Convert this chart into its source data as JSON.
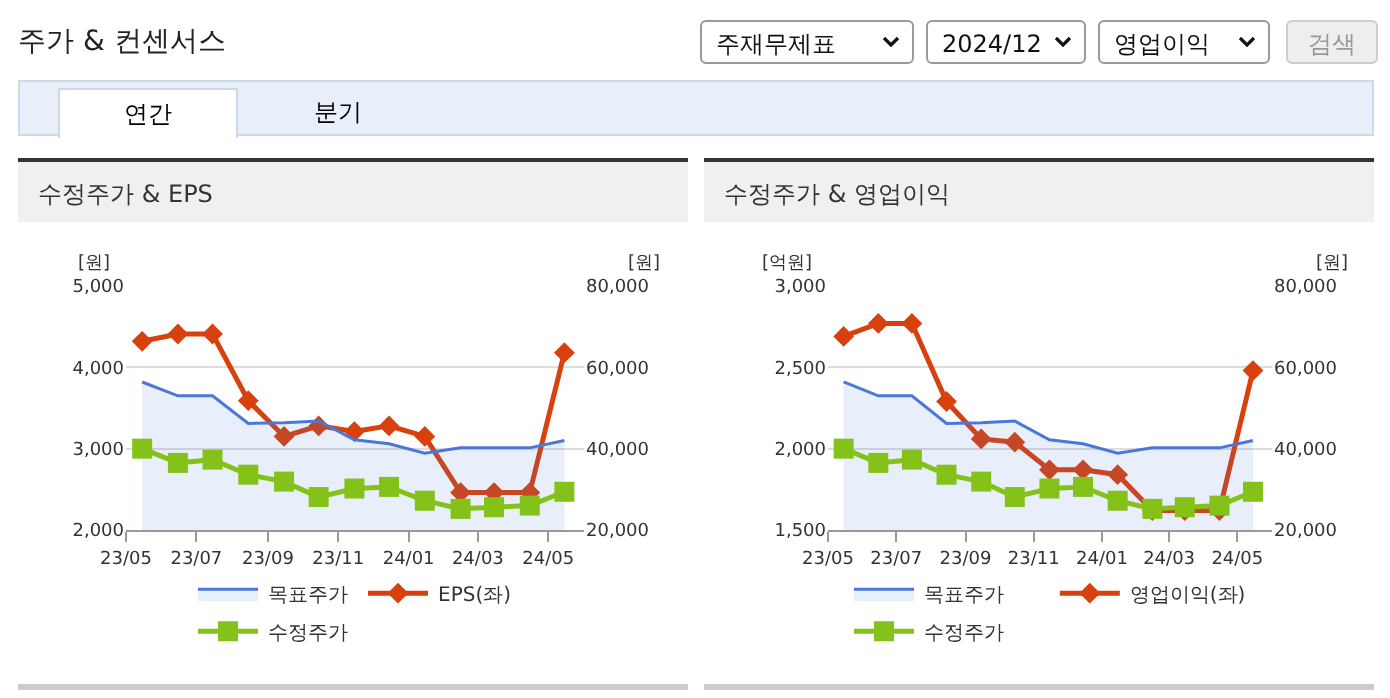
{
  "chart_data": [
    {
      "type": "other",
      "title": "주가 & 컨센서스",
      "annotations": [
        "주재무제표",
        "2024/12",
        "영업이익",
        "검색",
        "연간",
        "분기"
      ]
    },
    {
      "type": "line",
      "title": "수정주가 & EPS",
      "ylabel": "[원]",
      "y2label": "[원]",
      "x": [
        "2023-05-15",
        "2023-06-15",
        "2023-07-15",
        "2023-08-15",
        "2023-09-15",
        "2023-10-15",
        "2023-11-15",
        "2023-12-15",
        "2024-01-15",
        "2024-02-15",
        "2024-03-15",
        "2024-04-15",
        "2024-05-15"
      ],
      "series": [
        {
          "name": "목표주가",
          "type": "area",
          "axis": "y2",
          "color": "#4a78d8",
          "marker": "none",
          "values": [
            56400,
            53000,
            53000,
            46200,
            46400,
            46800,
            42200,
            41200,
            38900,
            40200,
            40200,
            40200,
            42000
          ]
        },
        {
          "name": "EPS(좌)",
          "type": "line",
          "axis": "y",
          "color": "#d8400e",
          "marker": "diamond",
          "values": [
            4320,
            4410,
            4410,
            3590,
            3150,
            3280,
            3210,
            3280,
            3150,
            2460,
            2460,
            2460,
            4180
          ]
        },
        {
          "name": "수정주가",
          "type": "line",
          "axis": "y2",
          "color": "#84c21a",
          "marker": "square",
          "values": [
            40000,
            36500,
            37300,
            33600,
            31900,
            28100,
            30200,
            30600,
            27200,
            25200,
            25600,
            26000,
            29400
          ]
        }
      ],
      "xlim": [
        "2023-05-01",
        "2024-06-01"
      ],
      "xticks": [
        {
          "value": "2023-05-01",
          "label": "23/05"
        },
        {
          "value": "2023-07-01",
          "label": "23/07"
        },
        {
          "value": "2023-09-01",
          "label": "23/09"
        },
        {
          "value": "2023-11-01",
          "label": "23/11"
        },
        {
          "value": "2024-01-01",
          "label": "24/01"
        },
        {
          "value": "2024-03-01",
          "label": "24/03"
        },
        {
          "value": "2024-05-01",
          "label": "24/05"
        }
      ],
      "ylim": [
        2000,
        5000
      ],
      "yticks": [
        {
          "value": 2000,
          "label": "2,000"
        },
        {
          "value": 3000,
          "label": "3,000"
        },
        {
          "value": 4000,
          "label": "4,000"
        },
        {
          "value": 5000,
          "label": "5,000"
        }
      ],
      "y2lim": [
        20000,
        80000
      ],
      "y2ticks": [
        {
          "value": 20000,
          "label": "20,000"
        },
        {
          "value": 40000,
          "label": "40,000"
        },
        {
          "value": 60000,
          "label": "60,000"
        },
        {
          "value": 80000,
          "label": "80,000"
        }
      ],
      "grid": "y",
      "legend": "bottom"
    },
    {
      "type": "line",
      "title": "수정주가 & 영업이익",
      "ylabel": "[억원]",
      "y2label": "[원]",
      "x": [
        "2023-05-15",
        "2023-06-15",
        "2023-07-15",
        "2023-08-15",
        "2023-09-15",
        "2023-10-15",
        "2023-11-15",
        "2023-12-15",
        "2024-01-15",
        "2024-02-15",
        "2024-03-15",
        "2024-04-15",
        "2024-05-15"
      ],
      "series": [
        {
          "name": "목표주가",
          "type": "area",
          "axis": "y2",
          "color": "#4a78d8",
          "marker": "none",
          "values": [
            56400,
            53000,
            53000,
            46200,
            46400,
            46800,
            42200,
            41200,
            38900,
            40200,
            40200,
            40200,
            42000
          ]
        },
        {
          "name": "영업이익(좌)",
          "type": "line",
          "axis": "y",
          "color": "#d8400e",
          "marker": "diamond",
          "values": [
            2690,
            2770,
            2770,
            2290,
            2060,
            2040,
            1870,
            1870,
            1840,
            1620,
            1620,
            1620,
            2480
          ]
        },
        {
          "name": "수정주가",
          "type": "line",
          "axis": "y2",
          "color": "#84c21a",
          "marker": "square",
          "values": [
            40000,
            36500,
            37300,
            33600,
            31900,
            28100,
            30200,
            30600,
            27200,
            25200,
            25600,
            26000,
            29400
          ]
        }
      ],
      "xlim": [
        "2023-05-01",
        "2024-06-01"
      ],
      "xticks": [
        {
          "value": "2023-05-01",
          "label": "23/05"
        },
        {
          "value": "2023-07-01",
          "label": "23/07"
        },
        {
          "value": "2023-09-01",
          "label": "23/09"
        },
        {
          "value": "2023-11-01",
          "label": "23/11"
        },
        {
          "value": "2024-01-01",
          "label": "24/01"
        },
        {
          "value": "2024-03-01",
          "label": "24/03"
        },
        {
          "value": "2024-05-01",
          "label": "24/05"
        }
      ],
      "ylim": [
        1500,
        3000
      ],
      "yticks": [
        {
          "value": 1500,
          "label": "1,500"
        },
        {
          "value": 2000,
          "label": "2,000"
        },
        {
          "value": 2500,
          "label": "2,500"
        },
        {
          "value": 3000,
          "label": "3,000"
        }
      ],
      "y2lim": [
        20000,
        80000
      ],
      "y2ticks": [
        {
          "value": 20000,
          "label": "20,000"
        },
        {
          "value": 40000,
          "label": "40,000"
        },
        {
          "value": 60000,
          "label": "60,000"
        },
        {
          "value": 80000,
          "label": "80,000"
        }
      ],
      "grid": "y",
      "legend": "bottom"
    }
  ]
}
